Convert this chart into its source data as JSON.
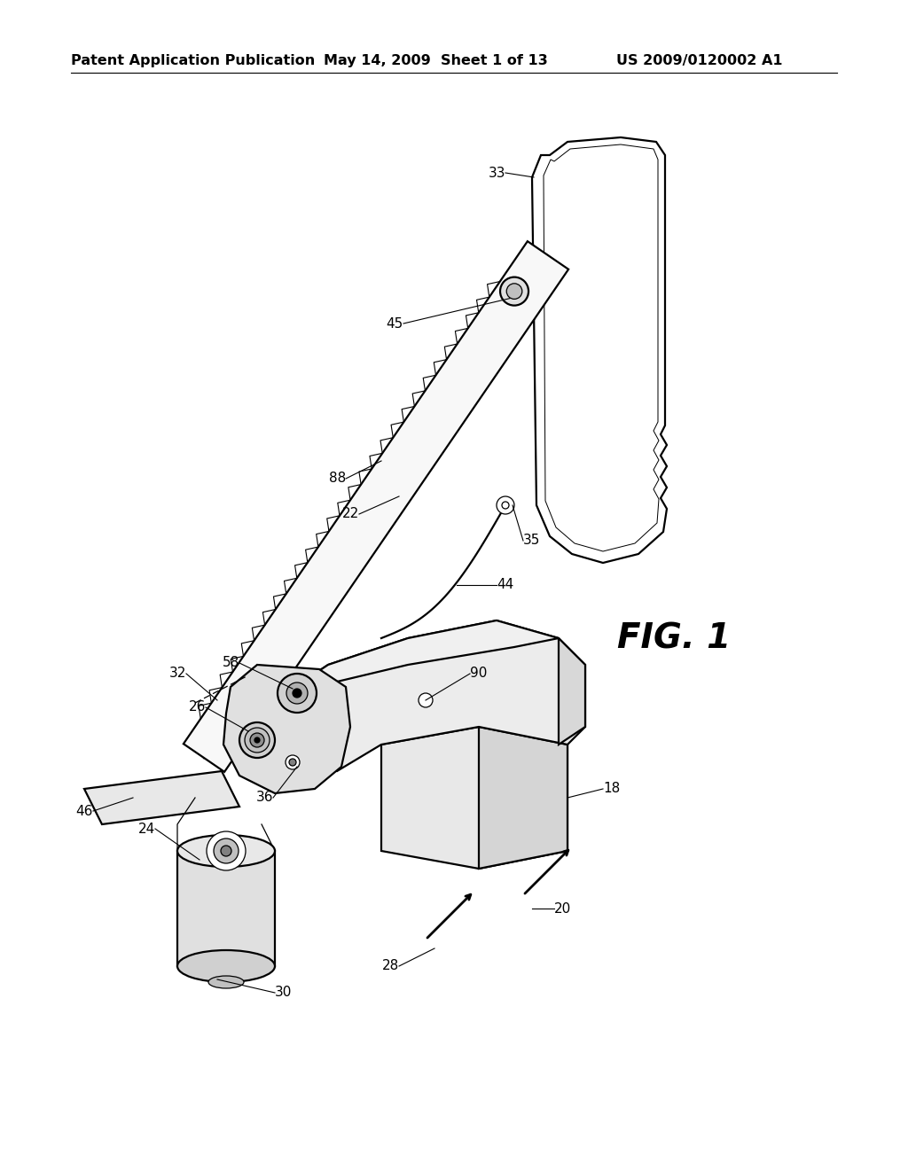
{
  "title": "Patent Application Publication",
  "date": "May 14, 2009  Sheet 1 of 13",
  "patent_num": "US 2009/0120002 A1",
  "fig_label": "FIG. 1",
  "bg_color": "#ffffff",
  "line_color": "#000000",
  "header_fontsize": 11.5,
  "fig_label_fontsize": 28,
  "annotation_fontsize": 11,
  "lw_main": 1.6,
  "lw_thin": 0.9
}
